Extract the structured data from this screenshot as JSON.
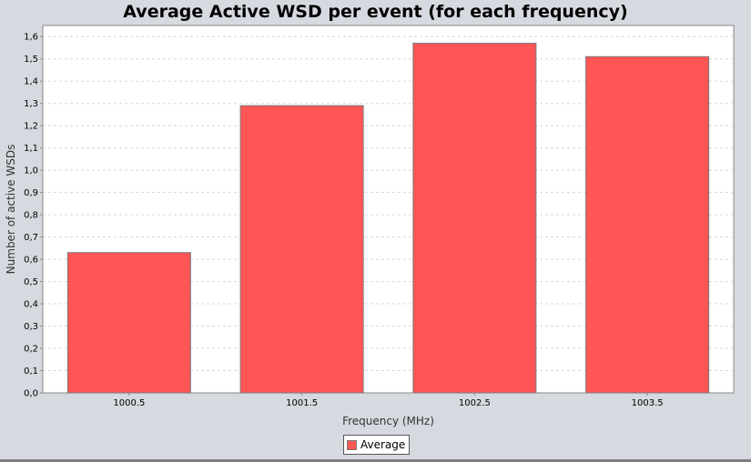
{
  "chart_data": {
    "type": "bar",
    "title": "Average Active WSD per event (for each frequency)",
    "xlabel": "Frequency (MHz)",
    "ylabel": "Number of active WSDs",
    "categories": [
      "1000.5",
      "1001.5",
      "1002.5",
      "1003.5"
    ],
    "series": [
      {
        "name": "Average",
        "values": [
          0.63,
          1.29,
          1.57,
          1.51
        ]
      }
    ],
    "ylim": [
      0,
      1.65
    ],
    "yticks": [
      "0,0",
      "0,1",
      "0,2",
      "0,3",
      "0,4",
      "0,5",
      "0,6",
      "0,7",
      "0,8",
      "0,9",
      "1,0",
      "1,1",
      "1,2",
      "1,3",
      "1,4",
      "1,5",
      "1,6"
    ],
    "grid": true,
    "legend": "bottom-center",
    "colors": {
      "bar": "#ff5555",
      "plot_background": "#ffffff",
      "gridline": "#d8d8d8"
    }
  }
}
